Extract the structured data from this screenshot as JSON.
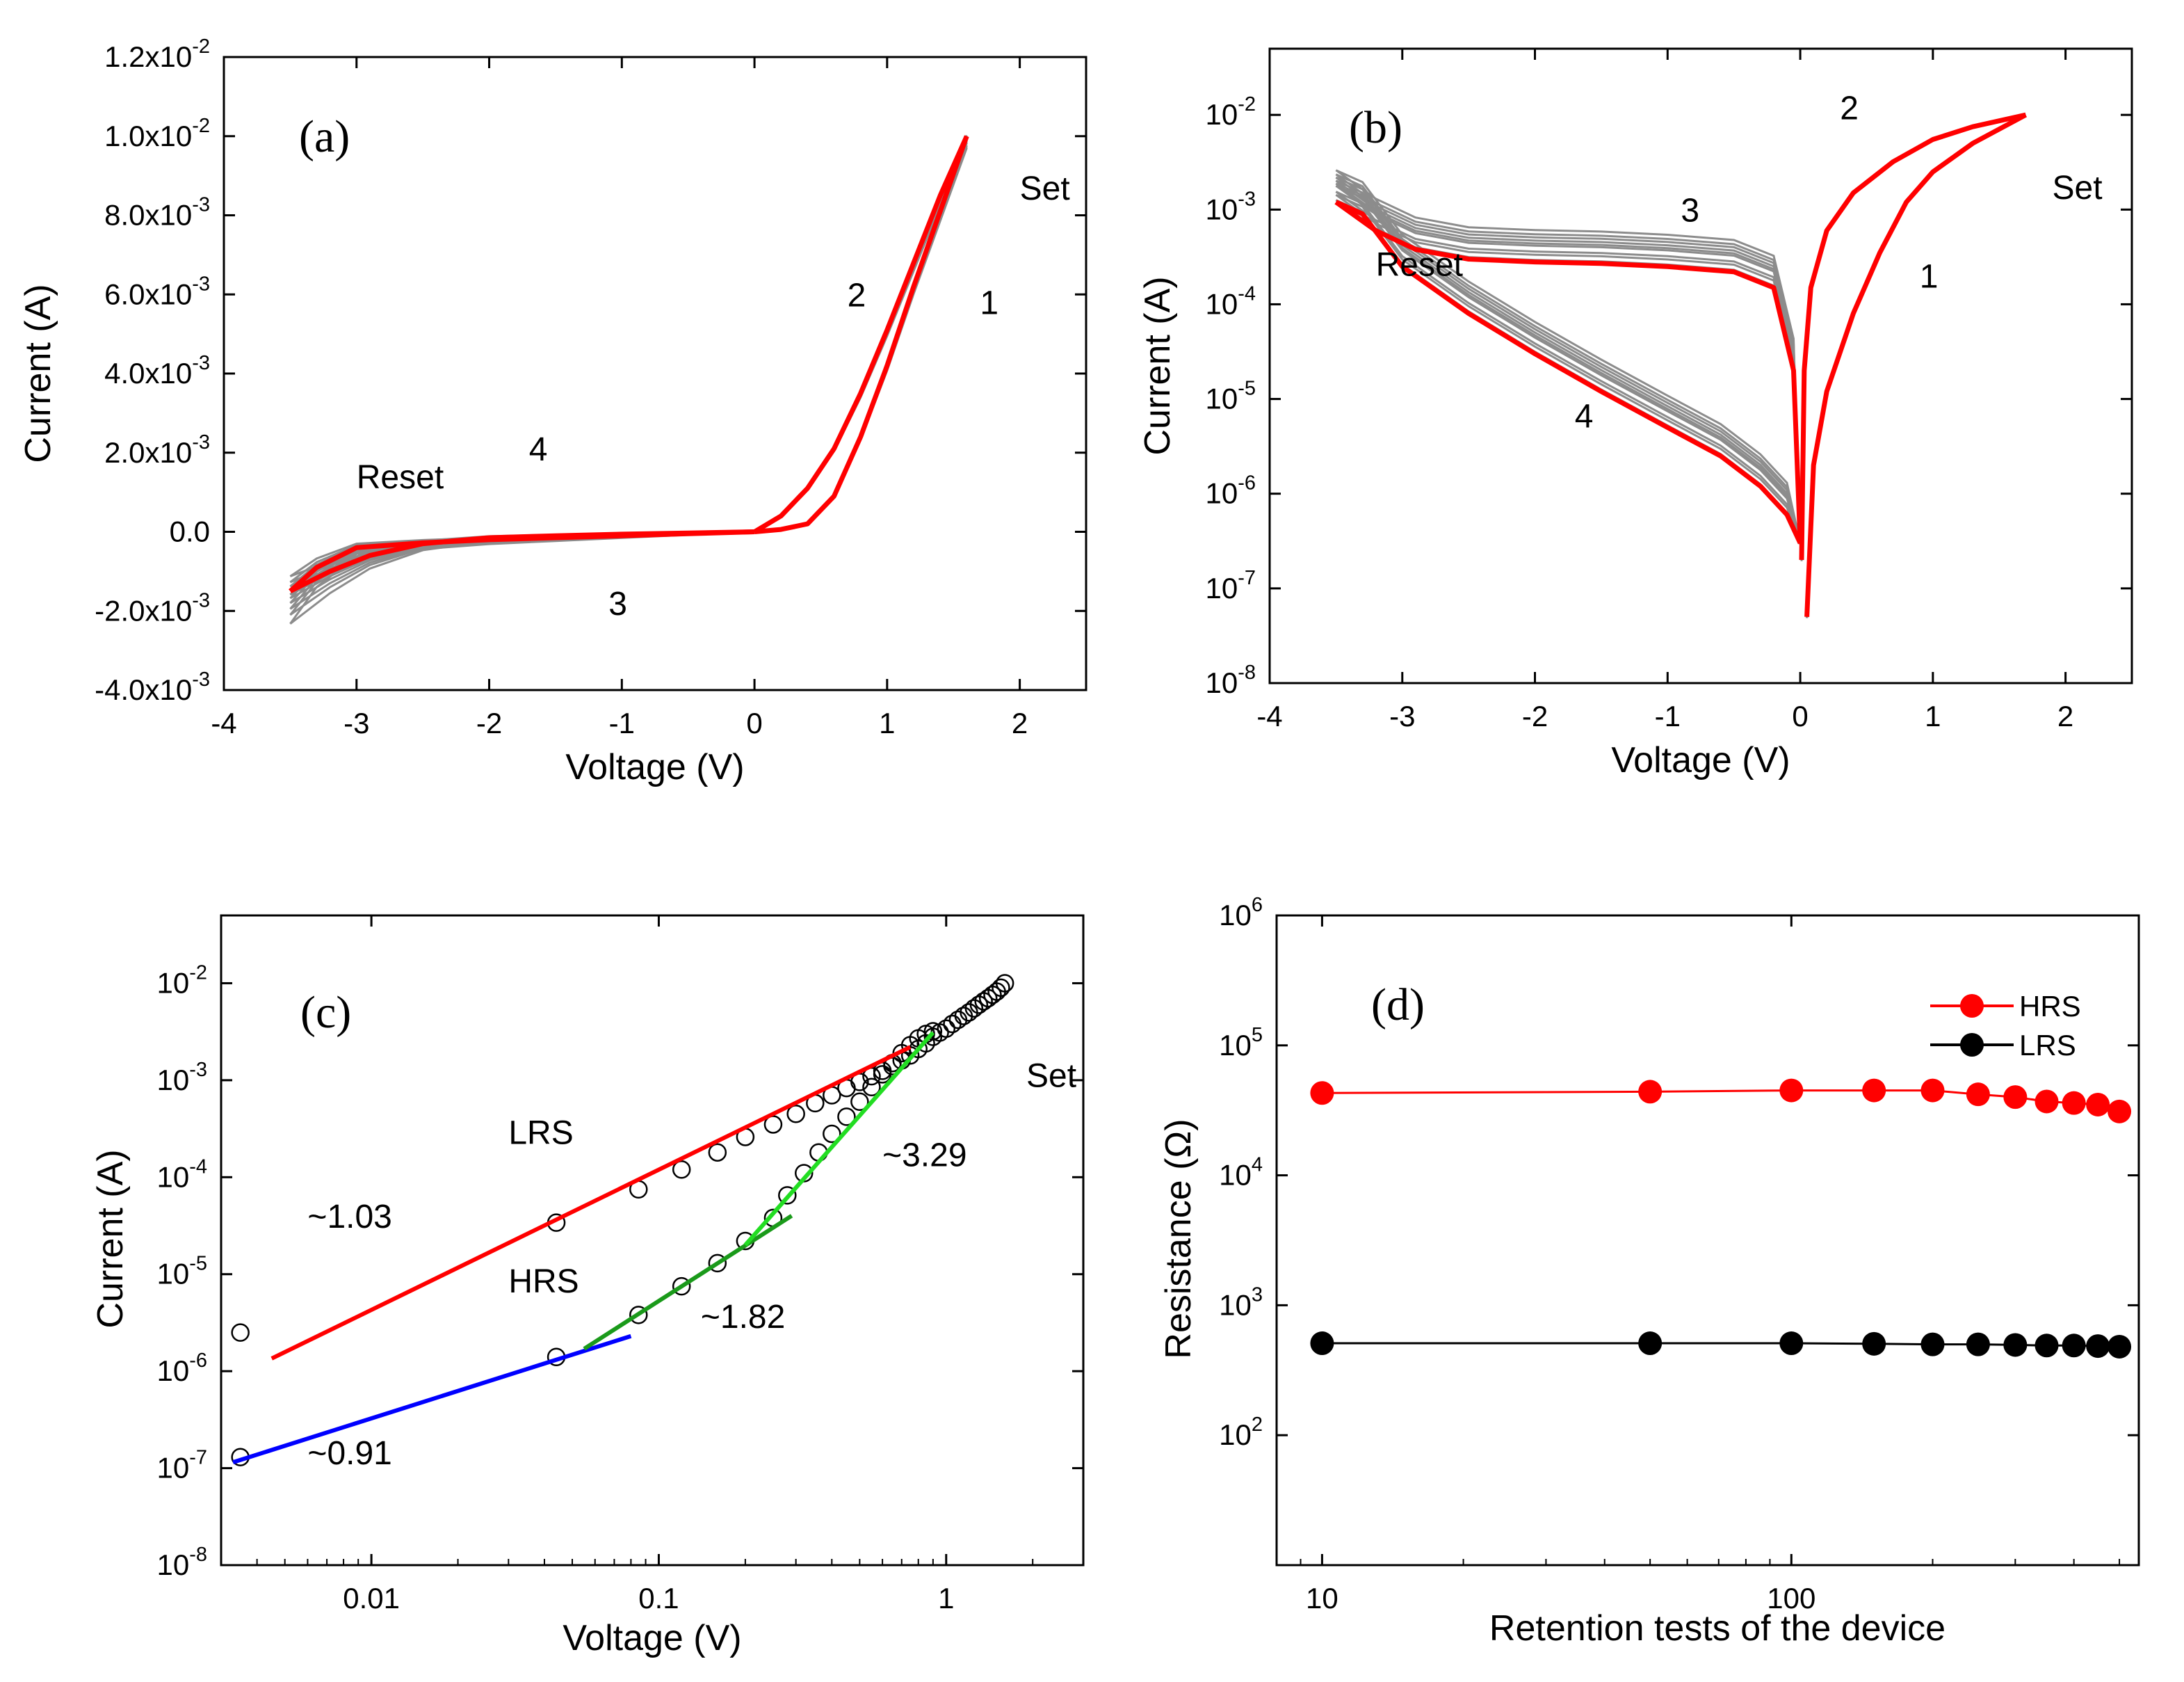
{
  "figure": "Resistive switching characteristics, panels (a)-(d)",
  "chart_data": [
    {
      "id": "a",
      "type": "line",
      "panel_label": "(a)",
      "xlabel": "Voltage (V)",
      "ylabel": "Current (A)",
      "xscale": "linear",
      "yscale": "linear",
      "xlim": [
        -4,
        2.5
      ],
      "ylim": [
        -0.004,
        0.012
      ],
      "xticks": [
        -4,
        -3,
        -2,
        -1,
        0,
        1,
        2
      ],
      "xtick_labels": [
        "-4",
        "-3",
        "-2",
        "-1",
        "0",
        "1",
        "2"
      ],
      "yticks": [
        -0.004,
        -0.002,
        0,
        0.002,
        0.004,
        0.006,
        0.008,
        0.01,
        0.012
      ],
      "ytick_labels": [
        {
          "mant": "-4.0x10",
          "exp": "-3"
        },
        {
          "mant": "-2.0x10",
          "exp": "-3"
        },
        {
          "mant": "0.0",
          "exp": ""
        },
        {
          "mant": "2.0x10",
          "exp": "-3"
        },
        {
          "mant": "4.0x10",
          "exp": "-3"
        },
        {
          "mant": "6.0x10",
          "exp": "-3"
        },
        {
          "mant": "8.0x10",
          "exp": "-3"
        },
        {
          "mant": "1.0x10",
          "exp": "-2"
        },
        {
          "mant": "1.2x10",
          "exp": "-2"
        }
      ],
      "series": [
        {
          "name": "repeated cycles",
          "color": "#808080",
          "kind": "band",
          "note": "many grey I-V cycles"
        },
        {
          "name": "representative cycle",
          "color": "#ff0000",
          "branches": [
            {
              "label": "set sweep 0 to 1.6 V",
              "points": [
                [
                  0,
                  0
                ],
                [
                  0.2,
                  6e-05
                ],
                [
                  0.4,
                  0.0002
                ],
                [
                  0.6,
                  0.0009
                ],
                [
                  0.8,
                  0.0024
                ],
                [
                  1.0,
                  0.0042
                ],
                [
                  1.2,
                  0.0062
                ],
                [
                  1.4,
                  0.0081
                ],
                [
                  1.6,
                  0.01
                ]
              ]
            },
            {
              "label": "return 1.6 V to 0",
              "points": [
                [
                  1.6,
                  0.01
                ],
                [
                  1.4,
                  0.0085
                ],
                [
                  1.2,
                  0.0068
                ],
                [
                  1.0,
                  0.0051
                ],
                [
                  0.8,
                  0.0035
                ],
                [
                  0.6,
                  0.0021
                ],
                [
                  0.4,
                  0.0011
                ],
                [
                  0.2,
                  0.0004
                ],
                [
                  0,
                  0
                ]
              ]
            },
            {
              "label": "negative sweep 0 to -3.5 V",
              "points": [
                [
                  0,
                  0
                ],
                [
                  -0.5,
                  -5e-05
                ],
                [
                  -1,
                  -0.0001
                ],
                [
                  -1.5,
                  -0.00015
                ],
                [
                  -2,
                  -0.0002
                ],
                [
                  -2.5,
                  -0.00028
                ],
                [
                  -3,
                  -0.0004
                ],
                [
                  -3.3,
                  -0.0009
                ],
                [
                  -3.5,
                  -0.0015
                ]
              ]
            },
            {
              "label": "return -3.5 V to 0",
              "points": [
                [
                  -3.5,
                  -0.0015
                ],
                [
                  -3.2,
                  -0.001
                ],
                [
                  -2.9,
                  -0.0006
                ],
                [
                  -2.5,
                  -0.0003
                ],
                [
                  -2,
                  -0.00015
                ],
                [
                  -1.5,
                  -0.0001
                ],
                [
                  -1,
                  -6e-05
                ],
                [
                  -0.5,
                  -3e-05
                ],
                [
                  0,
                  0
                ]
              ]
            }
          ]
        }
      ],
      "annotations": [
        {
          "text": "Set",
          "x": 2.0,
          "y": 0.0084
        },
        {
          "text": "Reset",
          "x": -3.0,
          "y": 0.0011
        },
        {
          "text": "1",
          "x": 1.7,
          "y": 0.0055
        },
        {
          "text": "2",
          "x": 0.7,
          "y": 0.0057
        },
        {
          "text": "3",
          "x": -1.1,
          "y": -0.0021
        },
        {
          "text": "4",
          "x": -1.7,
          "y": 0.0018
        }
      ]
    },
    {
      "id": "b",
      "type": "line",
      "panel_label": "(b)",
      "xlabel": "Voltage (V)",
      "ylabel": "Current (A)",
      "xscale": "linear",
      "yscale": "log",
      "xlim": [
        -4,
        2.5
      ],
      "ylim": [
        1e-08,
        0.05
      ],
      "xticks": [
        -4,
        -3,
        -2,
        -1,
        0,
        1,
        2
      ],
      "xtick_labels": [
        "-4",
        "-3",
        "-2",
        "-1",
        "0",
        "1",
        "2"
      ],
      "yticks": [
        1e-08,
        1e-07,
        1e-06,
        1e-05,
        0.0001,
        0.001,
        0.01
      ],
      "ytick_labels": [
        {
          "mant": "10",
          "exp": "-8"
        },
        {
          "mant": "10",
          "exp": "-7"
        },
        {
          "mant": "10",
          "exp": "-6"
        },
        {
          "mant": "10",
          "exp": "-5"
        },
        {
          "mant": "10",
          "exp": "-4"
        },
        {
          "mant": "10",
          "exp": "-3"
        },
        {
          "mant": "10",
          "exp": "-2"
        }
      ],
      "series": [
        {
          "name": "repeated cycles",
          "color": "#808080",
          "kind": "band"
        },
        {
          "name": "representative cycle",
          "color": "#ff0000",
          "branches": [
            {
              "label": "set sweep",
              "points": [
                [
                  0.05,
                  5e-08
                ],
                [
                  0.1,
                  2e-06
                ],
                [
                  0.2,
                  1.2e-05
                ],
                [
                  0.4,
                  8e-05
                ],
                [
                  0.6,
                  0.00035
                ],
                [
                  0.8,
                  0.0012
                ],
                [
                  1.0,
                  0.0025
                ],
                [
                  1.3,
                  0.005
                ],
                [
                  1.7,
                  0.01
                ]
              ]
            },
            {
              "label": "return",
              "points": [
                [
                  1.7,
                  0.01
                ],
                [
                  1.3,
                  0.0075
                ],
                [
                  1.0,
                  0.0055
                ],
                [
                  0.7,
                  0.0032
                ],
                [
                  0.4,
                  0.0015
                ],
                [
                  0.2,
                  0.0006
                ],
                [
                  0.08,
                  0.00015
                ],
                [
                  0.03,
                  2e-05
                ],
                [
                  0.01,
                  2e-07
                ]
              ]
            },
            {
              "label": "negative sweep",
              "points": [
                [
                  0,
                  3e-07
                ],
                [
                  -0.1,
                  6e-07
                ],
                [
                  -0.3,
                  1.2e-06
                ],
                [
                  -0.6,
                  2.5e-06
                ],
                [
                  -1,
                  5e-06
                ],
                [
                  -1.5,
                  1.2e-05
                ],
                [
                  -2,
                  3e-05
                ],
                [
                  -2.5,
                  8e-05
                ],
                [
                  -3,
                  0.00025
                ],
                [
                  -3.3,
                  0.0009
                ],
                [
                  -3.5,
                  0.0012
                ]
              ]
            },
            {
              "label": "return from reset",
              "points": [
                [
                  -3.5,
                  0.0012
                ],
                [
                  -3.2,
                  0.0006
                ],
                [
                  -2.9,
                  0.00038
                ],
                [
                  -2.5,
                  0.0003
                ],
                [
                  -2,
                  0.00028
                ],
                [
                  -1.5,
                  0.00027
                ],
                [
                  -1,
                  0.00025
                ],
                [
                  -0.5,
                  0.00022
                ],
                [
                  -0.2,
                  0.00015
                ],
                [
                  -0.05,
                  2e-05
                ],
                [
                  0,
                  3e-07
                ]
              ]
            }
          ]
        }
      ],
      "annotations": [
        {
          "text": "Set",
          "x": 1.9,
          "y": 0.0013
        },
        {
          "text": "Reset",
          "x": -3.2,
          "y": 0.0002
        },
        {
          "text": "1",
          "x": 0.9,
          "y": 0.00015
        },
        {
          "text": "2",
          "x": 0.3,
          "y": 0.009
        },
        {
          "text": "3",
          "x": -0.9,
          "y": 0.00075
        },
        {
          "text": "4",
          "x": -1.7,
          "y": 5e-06
        }
      ]
    },
    {
      "id": "c",
      "type": "scatter",
      "panel_label": "(c)",
      "xlabel": "Voltage (V)",
      "ylabel": "Current (A)",
      "xscale": "log",
      "yscale": "log",
      "xlim": [
        0.003,
        3
      ],
      "ylim": [
        1e-08,
        0.05
      ],
      "xticks": [
        0.01,
        0.1,
        1
      ],
      "xtick_labels": [
        "0.01",
        "0.1",
        "1"
      ],
      "yticks": [
        1e-08,
        1e-07,
        1e-06,
        1e-05,
        0.0001,
        0.001,
        0.01
      ],
      "ytick_labels": [
        {
          "mant": "10",
          "exp": "-8"
        },
        {
          "mant": "10",
          "exp": "-7"
        },
        {
          "mant": "10",
          "exp": "-6"
        },
        {
          "mant": "10",
          "exp": "-5"
        },
        {
          "mant": "10",
          "exp": "-4"
        },
        {
          "mant": "10",
          "exp": "-3"
        },
        {
          "mant": "10",
          "exp": "-2"
        }
      ],
      "points": [
        [
          0.0035,
          2.5e-06
        ],
        [
          0.044,
          3.4e-05
        ],
        [
          0.085,
          7.5e-05
        ],
        [
          0.12,
          0.00012
        ],
        [
          0.16,
          0.00018
        ],
        [
          0.2,
          0.00026
        ],
        [
          0.25,
          0.00035
        ],
        [
          0.3,
          0.00045
        ],
        [
          0.35,
          0.00058
        ],
        [
          0.4,
          0.0007
        ],
        [
          0.45,
          0.00083
        ],
        [
          0.5,
          0.00096
        ],
        [
          0.55,
          0.0011
        ],
        [
          0.6,
          0.00125
        ],
        [
          0.65,
          0.0014
        ],
        [
          0.7,
          0.0016
        ],
        [
          0.75,
          0.0018
        ],
        [
          0.8,
          0.0021
        ],
        [
          0.85,
          0.0024
        ],
        [
          0.9,
          0.0028
        ],
        [
          0.95,
          0.0031
        ],
        [
          1.0,
          0.0034
        ],
        [
          1.05,
          0.0038
        ],
        [
          1.1,
          0.0042
        ],
        [
          1.15,
          0.0046
        ],
        [
          1.2,
          0.005
        ],
        [
          1.25,
          0.0055
        ],
        [
          1.3,
          0.006
        ],
        [
          1.35,
          0.0065
        ],
        [
          1.4,
          0.007
        ],
        [
          1.45,
          0.0076
        ],
        [
          1.5,
          0.0082
        ],
        [
          1.55,
          0.009
        ],
        [
          1.6,
          0.01
        ],
        [
          0.0035,
          1.3e-07
        ],
        [
          0.044,
          1.4e-06
        ],
        [
          0.085,
          3.8e-06
        ],
        [
          0.12,
          7.5e-06
        ],
        [
          0.16,
          1.3e-05
        ],
        [
          0.2,
          2.2e-05
        ],
        [
          0.25,
          3.8e-05
        ],
        [
          0.28,
          6.5e-05
        ],
        [
          0.32,
          0.00011
        ],
        [
          0.36,
          0.00018
        ],
        [
          0.4,
          0.00028
        ],
        [
          0.45,
          0.00042
        ],
        [
          0.5,
          0.0006
        ],
        [
          0.55,
          0.00085
        ],
        [
          0.6,
          0.00115
        ],
        [
          0.65,
          0.0015
        ],
        [
          0.7,
          0.0019
        ],
        [
          0.75,
          0.0023
        ],
        [
          0.8,
          0.0027
        ],
        [
          0.85,
          0.003
        ],
        [
          0.9,
          0.0032
        ]
      ],
      "fits": [
        {
          "label": "~1.03",
          "color": "#ff0000",
          "x": [
            0.0045,
            0.75
          ],
          "y": [
            1.35e-06,
            0.0022
          ]
        },
        {
          "label": "~0.91",
          "color": "#0000ff",
          "x": [
            0.0033,
            0.08
          ],
          "y": [
            1.15e-07,
            2.3e-06
          ]
        },
        {
          "label": "~1.82",
          "color": "#1a9a1a",
          "x": [
            0.055,
            0.29
          ],
          "y": [
            1.7e-06,
            4e-05
          ]
        },
        {
          "label": "~3.29",
          "color": "#22dd22",
          "x": [
            0.2,
            0.9
          ],
          "y": [
            2e-05,
            0.0031
          ]
        }
      ],
      "annotations": [
        {
          "text": "Set",
          "x": 1.9,
          "y": 0.00085
        },
        {
          "text": "LRS",
          "x": 0.03,
          "y": 0.00022
        },
        {
          "text": "HRS",
          "x": 0.03,
          "y": 6.5e-06
        },
        {
          "text": "~1.03",
          "x": 0.006,
          "y": 3e-05
        },
        {
          "text": "~0.91",
          "x": 0.006,
          "y": 1.1e-07
        },
        {
          "text": "~1.82",
          "x": 0.14,
          "y": 2.8e-06
        },
        {
          "text": "~3.29",
          "x": 0.6,
          "y": 0.00013
        }
      ]
    },
    {
      "id": "d",
      "type": "line",
      "panel_label": "(d)",
      "xlabel": "Retention tests of the device",
      "ylabel": "Resistance (Ω)",
      "xscale": "log",
      "yscale": "log",
      "xlim": [
        8,
        550
      ],
      "ylim": [
        10,
        1000000
      ],
      "xticks": [
        10,
        100
      ],
      "xtick_labels": [
        "10",
        "100"
      ],
      "yticks": [
        100,
        1000,
        10000,
        100000,
        1000000
      ],
      "ytick_labels": [
        {
          "mant": "10",
          "exp": "2"
        },
        {
          "mant": "10",
          "exp": "3"
        },
        {
          "mant": "10",
          "exp": "4"
        },
        {
          "mant": "10",
          "exp": "5"
        },
        {
          "mant": "10",
          "exp": "6"
        }
      ],
      "legend": "top-right",
      "series": [
        {
          "name": "HRS",
          "color": "#ff0000",
          "x": [
            10,
            50,
            100,
            150,
            200,
            250,
            300,
            350,
            400,
            450,
            500
          ],
          "values": [
            43000,
            44000,
            45000,
            45000,
            45000,
            42000,
            40000,
            37000,
            36000,
            35000,
            31000
          ]
        },
        {
          "name": "LRS",
          "color": "#000000",
          "x": [
            10,
            50,
            100,
            150,
            200,
            250,
            300,
            350,
            400,
            450,
            500
          ],
          "values": [
            510,
            510,
            510,
            505,
            500,
            500,
            495,
            490,
            490,
            485,
            480
          ]
        }
      ]
    }
  ]
}
